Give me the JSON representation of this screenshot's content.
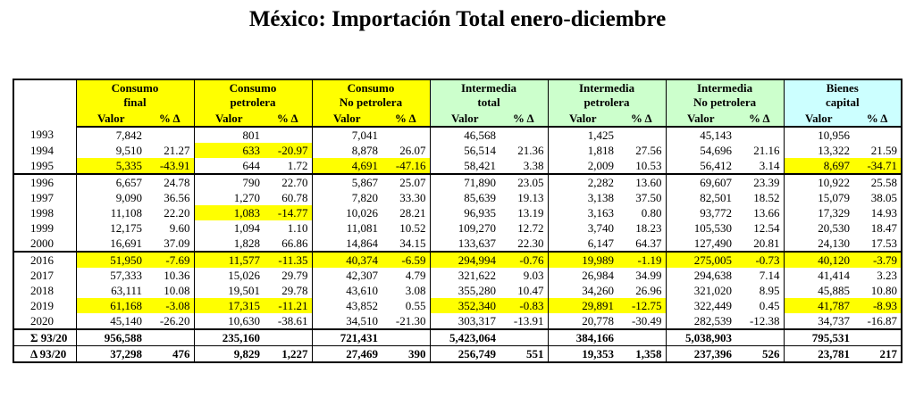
{
  "title": "México: Importación Total enero-diciembre",
  "table": {
    "groups": [
      {
        "lines": [
          "Consumo",
          "final"
        ],
        "color": "#ffff00"
      },
      {
        "lines": [
          "Consumo",
          "petrolera"
        ],
        "color": "#ffff00"
      },
      {
        "lines": [
          "Consumo",
          "No petrolera"
        ],
        "color": "#ffff00"
      },
      {
        "lines": [
          "Intermedia",
          "total"
        ],
        "color": "#ccffcc"
      },
      {
        "lines": [
          "Intermedia",
          "petrolera"
        ],
        "color": "#ccffcc"
      },
      {
        "lines": [
          "Intermedia",
          "No petrolera"
        ],
        "color": "#ccffcc"
      },
      {
        "lines": [
          "Bienes",
          "capital"
        ],
        "color": "#ccffff"
      }
    ],
    "subheaders": [
      "Valor",
      "% Δ"
    ],
    "highlight_color": "#ffff00",
    "sections": [
      {
        "rows": [
          {
            "label": "1993",
            "cells": [
              "7,842",
              null,
              "801",
              null,
              "7,041",
              null,
              "46,568",
              null,
              "1,425",
              null,
              "45,143",
              null,
              "10,956",
              null
            ],
            "highlight": []
          },
          {
            "label": "1994",
            "cells": [
              "9,510",
              "21.27",
              "633",
              "-20.97",
              "8,878",
              "26.07",
              "56,514",
              "21.36",
              "1,818",
              "27.56",
              "54,696",
              "21.16",
              "13,322",
              "21.59"
            ],
            "highlight": [
              1
            ]
          },
          {
            "label": "1995",
            "cells": [
              "5,335",
              "-43.91",
              "644",
              "1.72",
              "4,691",
              "-47.16",
              "58,421",
              "3.38",
              "2,009",
              "10.53",
              "56,412",
              "3.14",
              "8,697",
              "-34.71"
            ],
            "highlight": [
              0,
              2,
              6
            ]
          }
        ]
      },
      {
        "rows": [
          {
            "label": "1996",
            "cells": [
              "6,657",
              "24.78",
              "790",
              "22.70",
              "5,867",
              "25.07",
              "71,890",
              "23.05",
              "2,282",
              "13.60",
              "69,607",
              "23.39",
              "10,922",
              "25.58"
            ],
            "highlight": []
          },
          {
            "label": "1997",
            "cells": [
              "9,090",
              "36.56",
              "1,270",
              "60.78",
              "7,820",
              "33.30",
              "85,639",
              "19.13",
              "3,138",
              "37.50",
              "82,501",
              "18.52",
              "15,079",
              "38.05"
            ],
            "highlight": []
          },
          {
            "label": "1998",
            "cells": [
              "11,108",
              "22.20",
              "1,083",
              "-14.77",
              "10,026",
              "28.21",
              "96,935",
              "13.19",
              "3,163",
              "0.80",
              "93,772",
              "13.66",
              "17,329",
              "14.93"
            ],
            "highlight": [
              1
            ]
          },
          {
            "label": "1999",
            "cells": [
              "12,175",
              "9.60",
              "1,094",
              "1.10",
              "11,081",
              "10.52",
              "109,270",
              "12.72",
              "3,740",
              "18.23",
              "105,530",
              "12.54",
              "20,530",
              "18.47"
            ],
            "highlight": []
          },
          {
            "label": "2000",
            "cells": [
              "16,691",
              "37.09",
              "1,828",
              "66.86",
              "14,864",
              "34.15",
              "133,637",
              "22.30",
              "6,147",
              "64.37",
              "127,490",
              "20.81",
              "24,130",
              "17.53"
            ],
            "highlight": []
          }
        ]
      },
      {
        "rows": [
          {
            "label": "2016",
            "cells": [
              "51,950",
              "-7.69",
              "11,577",
              "-11.35",
              "40,374",
              "-6.59",
              "294,994",
              "-0.76",
              "19,989",
              "-1.19",
              "275,005",
              "-0.73",
              "40,120",
              "-3.79"
            ],
            "highlight": [
              0,
              1,
              2,
              3,
              4,
              5,
              6
            ]
          },
          {
            "label": "2017",
            "cells": [
              "57,333",
              "10.36",
              "15,026",
              "29.79",
              "42,307",
              "4.79",
              "321,622",
              "9.03",
              "26,984",
              "34.99",
              "294,638",
              "7.14",
              "41,414",
              "3.23"
            ],
            "highlight": []
          },
          {
            "label": "2018",
            "cells": [
              "63,111",
              "10.08",
              "19,501",
              "29.78",
              "43,610",
              "3.08",
              "355,280",
              "10.47",
              "34,260",
              "26.96",
              "321,020",
              "8.95",
              "45,885",
              "10.80"
            ],
            "highlight": []
          },
          {
            "label": "2019",
            "cells": [
              "61,168",
              "-3.08",
              "17,315",
              "-11.21",
              "43,852",
              "0.55",
              "352,340",
              "-0.83",
              "29,891",
              "-12.75",
              "322,449",
              "0.45",
              "41,787",
              "-8.93"
            ],
            "highlight": [
              0,
              1,
              3,
              4,
              6
            ]
          },
          {
            "label": "2020",
            "cells": [
              "45,140",
              "-26.20",
              "10,630",
              "-38.61",
              "34,510",
              "-21.30",
              "303,317",
              "-13.91",
              "20,778",
              "-30.49",
              "282,539",
              "-12.38",
              "34,737",
              "-16.87"
            ],
            "highlight": []
          }
        ]
      },
      {
        "bold": true,
        "rows": [
          {
            "label": "Σ 93/20",
            "cells": [
              "956,588",
              null,
              "235,160",
              null,
              "721,431",
              null,
              "5,423,064",
              null,
              "384,166",
              null,
              "5,038,903",
              null,
              "795,531",
              null
            ],
            "highlight": []
          },
          {
            "label": "Δ 93/20",
            "cells": [
              "37,298",
              "476",
              "9,829",
              "1,227",
              "27,469",
              "390",
              "256,749",
              "551",
              "19,353",
              "1,358",
              "237,396",
              "526",
              "23,781",
              "217"
            ],
            "highlight": []
          }
        ]
      }
    ]
  }
}
